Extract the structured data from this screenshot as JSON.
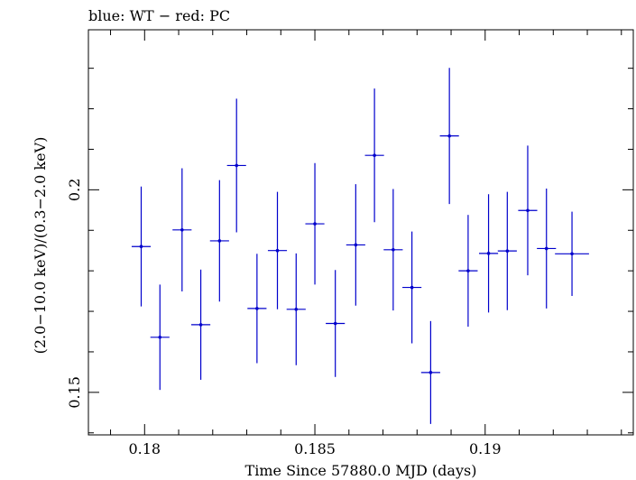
{
  "chart_data": {
    "type": "scatter",
    "title": "blue: WT − red: PC",
    "xlabel": "Time Since 57880.0 MJD (days)",
    "ylabel": "(2.0−10.0 keV)/(0.3−2.0 keV)",
    "xlim": [
      0.17835,
      0.19435
    ],
    "ylim": [
      0.1395,
      0.2395
    ],
    "xticks": [
      0.18,
      0.185,
      0.19
    ],
    "xtick_labels": [
      "0.18",
      "0.185",
      "0.19"
    ],
    "yticks": [
      0.15,
      0.2
    ],
    "ytick_labels": [
      "0.15",
      "0.2"
    ],
    "grid": false,
    "series": [
      {
        "name": "WT",
        "color": "#0000cc",
        "points": [
          {
            "x": 0.1799,
            "y": 0.186,
            "xerr": 0.00028,
            "yerr": 0.0148
          },
          {
            "x": 0.18045,
            "y": 0.1636,
            "xerr": 0.00028,
            "yerr": 0.013
          },
          {
            "x": 0.1811,
            "y": 0.1901,
            "xerr": 0.00028,
            "yerr": 0.0152
          },
          {
            "x": 0.18165,
            "y": 0.1667,
            "xerr": 0.00028,
            "yerr": 0.0136
          },
          {
            "x": 0.1822,
            "y": 0.1874,
            "xerr": 0.00028,
            "yerr": 0.015
          },
          {
            "x": 0.1827,
            "y": 0.206,
            "xerr": 0.00028,
            "yerr": 0.0165
          },
          {
            "x": 0.1833,
            "y": 0.1707,
            "xerr": 0.00028,
            "yerr": 0.0135
          },
          {
            "x": 0.1839,
            "y": 0.185,
            "xerr": 0.00028,
            "yerr": 0.0145
          },
          {
            "x": 0.18445,
            "y": 0.1705,
            "xerr": 0.00028,
            "yerr": 0.0138
          },
          {
            "x": 0.185,
            "y": 0.1916,
            "xerr": 0.00028,
            "yerr": 0.015
          },
          {
            "x": 0.1856,
            "y": 0.167,
            "xerr": 0.00028,
            "yerr": 0.0132
          },
          {
            "x": 0.1862,
            "y": 0.1864,
            "xerr": 0.00028,
            "yerr": 0.015
          },
          {
            "x": 0.18675,
            "y": 0.2085,
            "xerr": 0.00028,
            "yerr": 0.0165
          },
          {
            "x": 0.1873,
            "y": 0.1852,
            "xerr": 0.00028,
            "yerr": 0.015
          },
          {
            "x": 0.18785,
            "y": 0.1759,
            "xerr": 0.00028,
            "yerr": 0.0138
          },
          {
            "x": 0.1884,
            "y": 0.1549,
            "xerr": 0.00028,
            "yerr": 0.0127
          },
          {
            "x": 0.18895,
            "y": 0.2133,
            "xerr": 0.00028,
            "yerr": 0.0168
          },
          {
            "x": 0.1895,
            "y": 0.18,
            "xerr": 0.00028,
            "yerr": 0.0138
          },
          {
            "x": 0.1901,
            "y": 0.1843,
            "xerr": 0.00028,
            "yerr": 0.0146
          },
          {
            "x": 0.19065,
            "y": 0.1849,
            "xerr": 0.00028,
            "yerr": 0.0146
          },
          {
            "x": 0.19125,
            "y": 0.1949,
            "xerr": 0.00028,
            "yerr": 0.016
          },
          {
            "x": 0.1918,
            "y": 0.1855,
            "xerr": 0.00028,
            "yerr": 0.0148
          },
          {
            "x": 0.19255,
            "y": 0.1842,
            "xerr": 0.0005,
            "yerr": 0.0104
          }
        ]
      }
    ]
  }
}
